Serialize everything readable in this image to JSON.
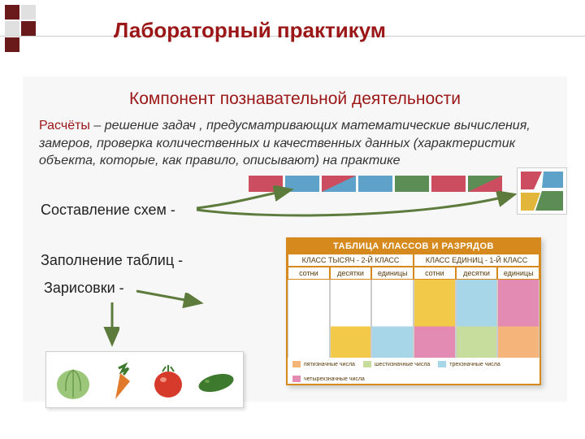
{
  "ornament_colors": [
    "#6a1a1a",
    "#e0e0e0",
    "#e0e0e0",
    "#6a1a1a",
    "#6a1a1a",
    "#ffffff"
  ],
  "title": "Лабораторный практикум",
  "title_color": "#9b1616",
  "subtitle": "Компонент познавательной деятельности",
  "subtitle_color": "#9b1616",
  "content_background": "#f7f7f7",
  "calc_lead": "Расчёты",
  "calc_body": " – решение задач , предусматривающих  математические вычисления, замеров, проверка количественных и качественных данных (характеристик объекта, которые, как правило, описывают) на практике",
  "line_schemes": "Составление схем -",
  "line_tables": "Заполнение таблиц -",
  "line_sketches": "Зарисовки -",
  "bar_row": {
    "segments": [
      {
        "top_color": "#cd4d60",
        "bottom_color": "#cd4d60"
      },
      {
        "top_color": "#5ea2c9",
        "bottom_color": "#5ea2c9"
      },
      {
        "top_color": "#cd4d60",
        "bottom_color": "#5ea2c9"
      },
      {
        "top_color": "#5ea2c9",
        "bottom_color": "#5ea2c9"
      },
      {
        "top_color": "#5b8d55",
        "bottom_color": "#5b8d55"
      },
      {
        "top_color": "#cd4d60",
        "bottom_color": "#cd4d60"
      },
      {
        "top_color": "#5b8d55",
        "bottom_color": "#cd4d60"
      }
    ]
  },
  "puzzle_pieces": [
    "#cd4d60",
    "#5ea2c9",
    "#e1b63a",
    "#5b8d55"
  ],
  "arrow_color": "#5d7b3c",
  "table_card": {
    "title": "ТАБЛИЦА КЛАССОВ И РАЗРЯДОВ",
    "border_color": "#d68a1e",
    "class_row": [
      "КЛАСС ТЫСЯЧ - 2-Й КЛАСС",
      "КЛАСС ЕДИНИЦ - 1-Й КЛАСС"
    ],
    "digit_row": [
      "сотни",
      "десятки",
      "единицы",
      "сотни",
      "десятки",
      "единицы"
    ],
    "col_top_colors": [
      "#ffffff",
      "#ffffff",
      "#ffffff",
      "#f3c94a",
      "#a7d6e8",
      "#e48bb4"
    ],
    "col_bottom_colors": [
      "#ffffff",
      "#f3c94a",
      "#a7d6e8",
      "#e48bb4",
      "#c7dd9e",
      "#f5b57a"
    ],
    "legend": [
      {
        "color": "#f5b57a",
        "label": "пятизначные числа"
      },
      {
        "color": "#c7dd9e",
        "label": "шестизначные числа"
      },
      {
        "color": "#a7d6e8",
        "label": "трехзначные числа"
      },
      {
        "color": "#e48bb4",
        "label": "четырехзначные числа"
      }
    ]
  },
  "vegetables": [
    {
      "name": "cabbage",
      "color": "#9cc77a"
    },
    {
      "name": "carrot",
      "color": "#e07a2a"
    },
    {
      "name": "tomato",
      "color": "#d63a2a"
    },
    {
      "name": "cucumber",
      "color": "#3e7a2d"
    }
  ]
}
